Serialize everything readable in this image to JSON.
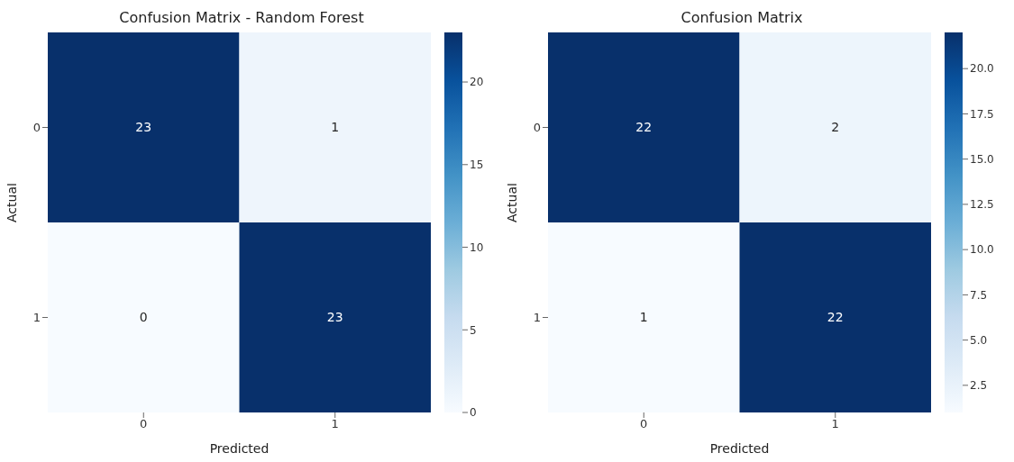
{
  "chart_data": [
    {
      "type": "heatmap",
      "title": "Confusion Matrix - Random Forest",
      "xlabel": "Predicted",
      "ylabel": "Actual",
      "categories": [
        "0",
        "1"
      ],
      "y_categories": [
        "0",
        "1"
      ],
      "cells": [
        [
          23,
          1
        ],
        [
          0,
          23
        ]
      ],
      "data_labels": true,
      "clim": [
        0,
        23
      ],
      "cticks": [
        0,
        5,
        10,
        15,
        20
      ]
    },
    {
      "type": "heatmap",
      "title": "Confusion Matrix",
      "xlabel": "Predicted",
      "ylabel": "Actual",
      "categories": [
        "0",
        "1"
      ],
      "y_categories": [
        "0",
        "1"
      ],
      "cells": [
        [
          22,
          2
        ],
        [
          1,
          22
        ]
      ],
      "data_labels": true,
      "clim": [
        1,
        22
      ],
      "cticks": [
        {
          "value": 2.5,
          "label": "2.5"
        },
        {
          "value": 5,
          "label": "5.0"
        },
        {
          "value": 7.5,
          "label": "7.5"
        },
        {
          "value": 10,
          "label": "10.0"
        },
        {
          "value": 12.5,
          "label": "12.5"
        },
        {
          "value": 15,
          "label": "15.0"
        },
        {
          "value": 17.5,
          "label": "17.5"
        },
        {
          "value": 20,
          "label": "20.0"
        }
      ]
    }
  ]
}
